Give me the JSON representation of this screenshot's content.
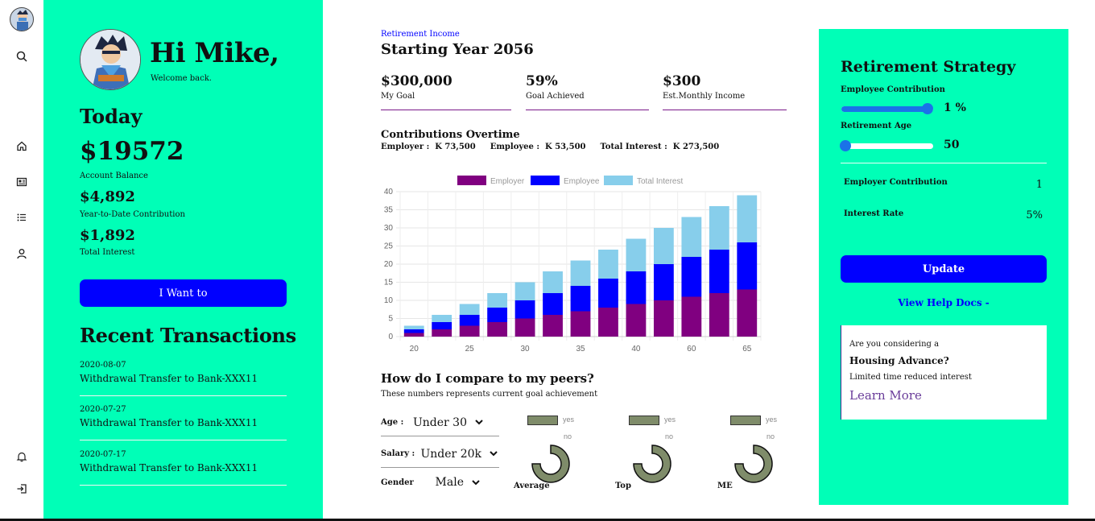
{
  "user": {
    "greeting": "Hi Mike,",
    "welcome": "Welcome back."
  },
  "today": {
    "heading": "Today",
    "balance": "$19572",
    "balance_label": "Account Balance",
    "ytd": "$4,892",
    "ytd_label": "Year-to-Date Contribution",
    "interest": "$1,892",
    "interest_label": "Total Interest",
    "action_button": "I Want to"
  },
  "transactions": {
    "heading": "Recent Transactions",
    "items": [
      {
        "date": "2020-08-07",
        "title": "Withdrawal Transfer to Bank-XXX11"
      },
      {
        "date": "2020-07-27",
        "title": "Withdrawal Transfer to Bank-XXX11"
      },
      {
        "date": "2020-07-17",
        "title": "Withdrawal Transfer to Bank-XXX11"
      }
    ]
  },
  "income": {
    "small_title": "Retirement Income",
    "title": "Starting Year 2056",
    "stats": [
      {
        "value": "$300,000",
        "label": "My Goal"
      },
      {
        "value": "59%",
        "label": "Goal Achieved"
      },
      {
        "value": "$300",
        "label": "Est.Monthly Income"
      }
    ]
  },
  "contributions": {
    "heading": "Contributions Overtime",
    "employer_label": "Employer :",
    "employer_value": "K 73,500",
    "employee_label": "Employee :",
    "employee_value": "K 53,500",
    "interest_label": "Total Interest :",
    "interest_value": "K 273,500"
  },
  "chart_data": {
    "type": "bar",
    "stacked": true,
    "categories": [
      "20",
      "",
      "25",
      "",
      "30",
      "",
      "35",
      "",
      "40",
      "",
      "60",
      "",
      "65"
    ],
    "series": [
      {
        "name": "Employer",
        "color": "#800080",
        "values": [
          1,
          2,
          3,
          4,
          5,
          6,
          7,
          8,
          9,
          10,
          11,
          12,
          13
        ]
      },
      {
        "name": "Employee",
        "color": "#0000ff",
        "values": [
          1,
          2,
          3,
          4,
          5,
          6,
          7,
          8,
          9,
          10,
          11,
          12,
          13
        ]
      },
      {
        "name": "Total Interest",
        "color": "#87ceeb",
        "values": [
          1,
          2,
          3,
          4,
          5,
          6,
          7,
          8,
          9,
          10,
          11,
          12,
          13
        ]
      }
    ],
    "yticks": [
      "0",
      "5",
      "10",
      "15",
      "20",
      "25",
      "30",
      "35",
      "40"
    ],
    "ylim": [
      0,
      40
    ],
    "legend": "top",
    "grid": true
  },
  "peers": {
    "heading": "How do I compare to my peers?",
    "subheading": "These numbers represents current goal achievement",
    "filters": [
      {
        "label": "Age :",
        "value": "Under 30"
      },
      {
        "label": "Salary :",
        "value": "Under 20k"
      },
      {
        "label": "Gender",
        "value": "Male"
      }
    ],
    "groups": [
      {
        "name": "Average",
        "yes": "yes",
        "no": "no"
      },
      {
        "name": "Top",
        "yes": "yes",
        "no": "no"
      },
      {
        "name": "ME",
        "yes": "yes",
        "no": "no"
      }
    ]
  },
  "strategy": {
    "title": "Retirement Strategy",
    "employee_contribution_label": "Employee Contribution",
    "employee_contribution_value": "1 %",
    "employee_contribution_fraction": 0.94,
    "retirement_age_label": "Retirement Age",
    "retirement_age_value": "50",
    "retirement_age_fraction": 0.04,
    "employer_contribution_label": "Employer Contribution",
    "employer_contribution_value": "1",
    "interest_rate_label": "Interest Rate",
    "interest_rate_value": "5%",
    "update_button": "Update",
    "help_link": "View Help Docs -"
  },
  "promo": {
    "line1": "Are you considering a",
    "line2": "Housing Advance?",
    "line3": "Limited time reduced interest",
    "link": "Learn More"
  },
  "icons": {
    "rail": [
      "user-avatar",
      "search-icon",
      "home-icon",
      "news-icon",
      "list-icon",
      "user-icon",
      "bell-icon",
      "logout-icon"
    ]
  }
}
